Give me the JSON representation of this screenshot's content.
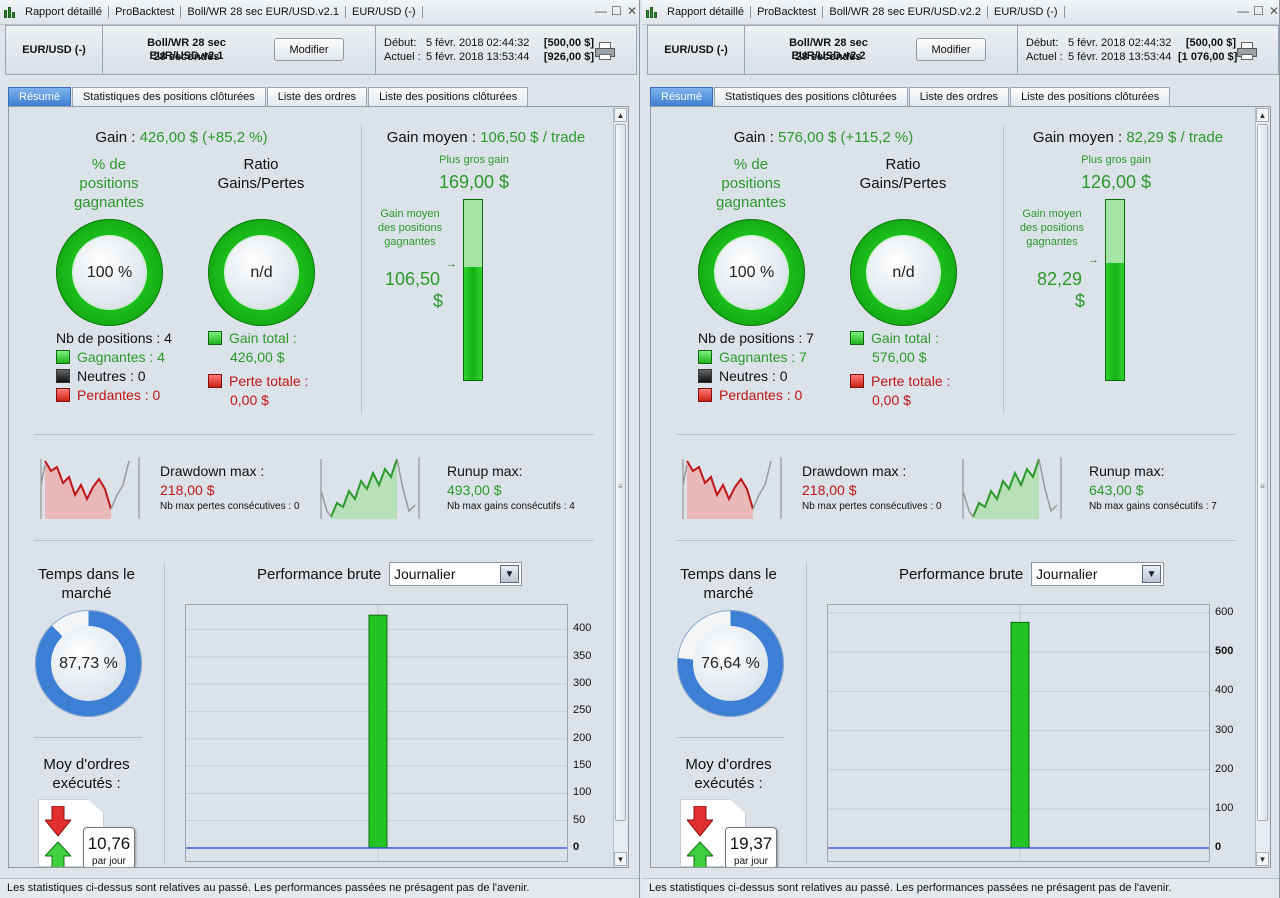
{
  "windows": [
    {
      "title_segments": [
        "Rapport détaillé",
        "ProBacktest",
        "Boll/WR 28 sec EUR/USD.v2.1",
        "EUR/USD (-)"
      ],
      "window_controls": [
        "—",
        "☐",
        "✕"
      ],
      "header": {
        "pair": "EUR/USD (-)",
        "strategy": "Boll/WR 28 sec EUR/USD.v2.1",
        "duration": "28 secondes",
        "modify_label": "Modifier",
        "start_label": "Début:",
        "start_date": "5 févr. 2018 02:44:32",
        "start_balance": "[500,00 $]",
        "current_label": "Actuel :",
        "current_date": "5 févr. 2018 13:53:44",
        "current_balance": "[926,00 $]"
      },
      "tabs": [
        "Résumé",
        "Statistiques des positions clôturées",
        "Liste des ordres",
        "Liste des positions clôturées"
      ],
      "active_tab": 0,
      "summary": {
        "gain_label": "Gain :",
        "gain_value": "426,00 $ (+85,2 %)",
        "pct_winning_label": "% de positions gagnantes",
        "pct_winning_value": "100 %",
        "pct_winning_fraction": 1.0,
        "ratio_label": "Ratio Gains/Pertes",
        "ratio_value": "n/d",
        "nb_positions": "Nb de positions : 4",
        "gagnantes": "Gagnantes : 4",
        "neutres": "Neutres : 0",
        "perdantes": "Perdantes : 0",
        "gain_total_label": "Gain total :",
        "gain_total_value": "426,00 $",
        "perte_totale_label": "Perte totale :",
        "perte_totale_value": "0,00 $",
        "gain_moyen_label": "Gain moyen :",
        "gain_moyen_value": "106,50 $ / trade",
        "plus_gros_gain_label": "Plus gros gain",
        "plus_gros_gain_value": "169,00 $",
        "gain_moyen_pos_label": "Gain moyen des positions gagnantes",
        "gain_moyen_pos_value": "106,50",
        "gain_moyen_pos_unit": "$",
        "avg_to_max_ratio": 0.63,
        "drawdown_label": "Drawdown max :",
        "drawdown_value": "218,00 $",
        "max_losses_label": "Nb max pertes consécutives : 0",
        "runup_label": "Runup max:",
        "runup_value": "493,00 $",
        "max_gains_label": "Nb max gains consécutifs : 4",
        "time_in_market_label": "Temps dans le marché",
        "time_in_market_value": "87,73 %",
        "time_in_market_fraction": 0.8773,
        "perf_label": "Performance brute",
        "perf_select": "Journalier",
        "orders_label": "Moy d'ordres exécutés :",
        "orders_value": "10,76",
        "orders_unit": "par jour"
      },
      "chart_data": {
        "type": "bar",
        "categories": [
          ""
        ],
        "values": [
          426
        ],
        "ylim": [
          0,
          430
        ],
        "yticks": [
          "400",
          "350",
          "300",
          "250",
          "200",
          "150",
          "100",
          "50",
          "0"
        ],
        "ytick_values": [
          400,
          350,
          300,
          250,
          200,
          150,
          100,
          50,
          0
        ],
        "bold_ticks": [
          "0"
        ]
      },
      "status": "Les statistiques ci-dessus sont relatives au passé. Les performances passées ne présagent pas de l'avenir."
    },
    {
      "title_segments": [
        "Rapport détaillé",
        "ProBacktest",
        "Boll/WR 28 sec EUR/USD.v2.2",
        "EUR/USD (-)"
      ],
      "window_controls": [
        "—",
        "☐",
        "✕"
      ],
      "header": {
        "pair": "EUR/USD (-)",
        "strategy": "Boll/WR 28 sec EUR/USD.v2.2",
        "duration": "28 secondes",
        "modify_label": "Modifier",
        "start_label": "Début:",
        "start_date": "5 févr. 2018 02:44:32",
        "start_balance": "[500,00 $]",
        "current_label": "Actuel :",
        "current_date": "5 févr. 2018 13:53:44",
        "current_balance": "[1 076,00 $]"
      },
      "tabs": [
        "Résumé",
        "Statistiques des positions clôturées",
        "Liste des ordres",
        "Liste des positions clôturées"
      ],
      "active_tab": 0,
      "summary": {
        "gain_label": "Gain :",
        "gain_value": "576,00 $ (+115,2 %)",
        "pct_winning_label": "% de positions gagnantes",
        "pct_winning_value": "100 %",
        "pct_winning_fraction": 1.0,
        "ratio_label": "Ratio Gains/Pertes",
        "ratio_value": "n/d",
        "nb_positions": "Nb de positions : 7",
        "gagnantes": "Gagnantes : 7",
        "neutres": "Neutres : 0",
        "perdantes": "Perdantes : 0",
        "gain_total_label": "Gain total :",
        "gain_total_value": "576,00 $",
        "perte_totale_label": "Perte totale :",
        "perte_totale_value": "0,00 $",
        "gain_moyen_label": "Gain moyen :",
        "gain_moyen_value": "82,29 $ / trade",
        "plus_gros_gain_label": "Plus gros gain",
        "plus_gros_gain_value": "126,00 $",
        "gain_moyen_pos_label": "Gain moyen des positions gagnantes",
        "gain_moyen_pos_value": "82,29",
        "gain_moyen_pos_unit": "$",
        "avg_to_max_ratio": 0.65,
        "drawdown_label": "Drawdown max :",
        "drawdown_value": "218,00 $",
        "max_losses_label": "Nb max pertes consécutives : 0",
        "runup_label": "Runup max:",
        "runup_value": "643,00 $",
        "max_gains_label": "Nb max gains consécutifs : 7",
        "time_in_market_label": "Temps dans le marché",
        "time_in_market_value": "76,64 %",
        "time_in_market_fraction": 0.7664,
        "perf_label": "Performance brute",
        "perf_select": "Journalier",
        "orders_label": "Moy d'ordres exécutés :",
        "orders_value": "19,37",
        "orders_unit": "par jour"
      },
      "chart_data": {
        "type": "bar",
        "categories": [
          ""
        ],
        "values": [
          576
        ],
        "ylim": [
          0,
          600
        ],
        "yticks": [
          "600",
          "500",
          "400",
          "300",
          "200",
          "100",
          "0"
        ],
        "ytick_values": [
          600,
          500,
          400,
          300,
          200,
          100,
          0
        ],
        "bold_ticks": [
          "500",
          "0"
        ]
      },
      "status": "Les statistiques ci-dessus sont relatives au passé. Les performances passées ne présagent pas de l'avenir."
    }
  ],
  "colors": {
    "green": "#2b9a2b",
    "red": "#c01616",
    "active_tab": "#3f7fd0",
    "donut_blue": "#3e7fd6"
  }
}
